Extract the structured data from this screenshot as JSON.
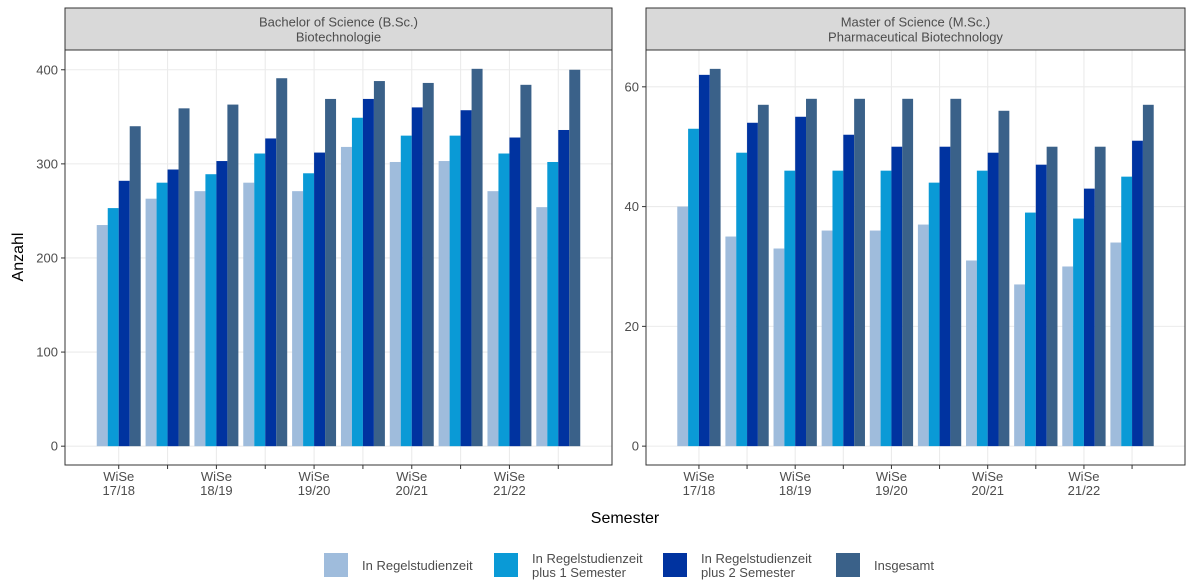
{
  "chart_data": [
    {
      "type": "bar",
      "title": "Bachelor of Science (B.Sc.)\nBiotechnologie",
      "x_label": "Semester",
      "y_label": "Anzahl",
      "categories": [
        "WiSe\n17/18",
        null,
        "WiSe\n18/19",
        null,
        "WiSe\n19/20",
        null,
        "WiSe\n20/21",
        null,
        "WiSe\n21/22",
        null
      ],
      "series": [
        {
          "name": "In Regelstudienzeit",
          "color": "#9fbcdc",
          "values": [
            235,
            263,
            271,
            280,
            271,
            318,
            302,
            303,
            271,
            254
          ]
        },
        {
          "name": "In Regelstudienzeit\nplus 1 Semester",
          "color": "#0a9ad6",
          "values": [
            253,
            280,
            289,
            311,
            290,
            349,
            330,
            330,
            311,
            302
          ]
        },
        {
          "name": "In Regelstudienzeit\nplus 2 Semester",
          "color": "#0033a0",
          "values": [
            282,
            294,
            303,
            327,
            312,
            369,
            360,
            357,
            328,
            336
          ]
        },
        {
          "name": "Insgesamt",
          "color": "#3a6189",
          "values": [
            340,
            359,
            363,
            391,
            369,
            388,
            386,
            401,
            384,
            400
          ]
        }
      ],
      "ylim": [
        -20,
        421
      ],
      "yticks": [
        0,
        100,
        200,
        300,
        400
      ],
      "grid": true
    },
    {
      "type": "bar",
      "title": "Master of Science (M.Sc.)\nPharmaceutical Biotechnology",
      "categories": [
        "WiSe\n17/18",
        null,
        "WiSe\n18/19",
        null,
        "WiSe\n19/20",
        null,
        "WiSe\n20/21",
        null,
        "WiSe\n21/22",
        null
      ],
      "series": [
        {
          "color": "#9fbcdc",
          "values": [
            40,
            35,
            33,
            36,
            36,
            37,
            31,
            27,
            30,
            34
          ]
        },
        {
          "color": "#0a9ad6",
          "values": [
            53,
            49,
            46,
            46,
            46,
            44,
            46,
            39,
            38,
            45
          ]
        },
        {
          "color": "#0033a0",
          "values": [
            62,
            54,
            55,
            52,
            50,
            50,
            49,
            47,
            43,
            51
          ]
        },
        {
          "color": "#3a6189",
          "values": [
            63,
            57,
            58,
            58,
            58,
            58,
            56,
            50,
            50,
            57
          ]
        }
      ],
      "ylim": [
        -3.15,
        66.15
      ],
      "yticks": [
        0,
        20,
        40,
        60
      ],
      "grid": true
    }
  ]
}
